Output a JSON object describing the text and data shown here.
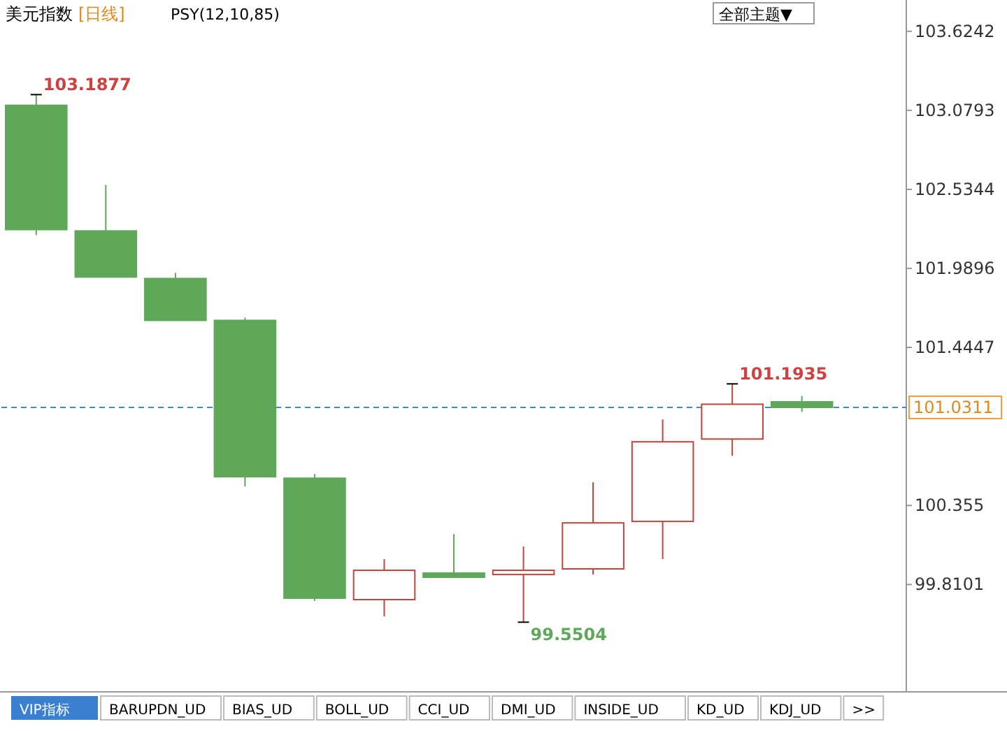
{
  "chart_data": {
    "type": "candlestick",
    "title": "美元指数",
    "subtitle": "[日线]",
    "categories": [
      null,
      null,
      null,
      null,
      null,
      null,
      null,
      null,
      null,
      null,
      null,
      null
    ],
    "ohlc": [
      [
        103.114,
        103.1877,
        102.219,
        102.257
      ],
      [
        102.248,
        102.565,
        101.93,
        101.93
      ],
      [
        101.92,
        101.959,
        101.631,
        101.631
      ],
      [
        101.631,
        101.65,
        100.486,
        100.553
      ],
      [
        100.543,
        100.572,
        99.697,
        99.716
      ],
      [
        99.706,
        99.985,
        99.59,
        99.908
      ],
      [
        99.889,
        100.158,
        99.86,
        99.86
      ],
      [
        99.879,
        100.072,
        99.5504,
        99.908
      ],
      [
        99.918,
        100.515,
        99.879,
        100.235
      ],
      [
        100.245,
        100.948,
        99.985,
        100.794
      ],
      [
        100.813,
        101.1935,
        100.697,
        101.053
      ],
      [
        101.07,
        101.11,
        101.0,
        101.0311
      ]
    ],
    "colors": [
      "#5fa85a",
      "#5fa85a",
      "#5fa85a",
      "#5fa85a",
      "#5fa85a",
      "#c0463a",
      "#5fa85a",
      "#c0463a",
      "#c0463a",
      "#c0463a",
      "#c0463a",
      "#5fa85a"
    ],
    "ylim": [
      99.07,
      103.84
    ],
    "yticks": [
      103.6242,
      103.0793,
      102.5344,
      101.9896,
      101.4447,
      100.355,
      99.8101
    ],
    "ref_lines": [
      {
        "axis": "y",
        "value": 101.0311,
        "label": "101.0311",
        "color": "#2f8fd8",
        "line_style": "dashed"
      }
    ],
    "annotations": [
      "103.1877",
      "101.1935",
      "99.5504",
      "PSY(12,10,85)",
      "全部主题▼",
      "VIP指标",
      "BARUPDN_UD",
      "BIAS_UD",
      "BOLL_UD",
      "CCI_UD",
      "DMI_UD",
      "INSIDE_UD",
      "KD_UD",
      "KDJ_UD",
      ">>"
    ],
    "grid": false
  }
}
